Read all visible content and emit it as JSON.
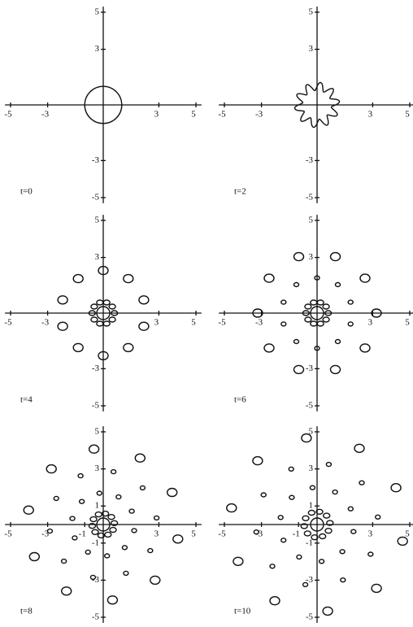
{
  "panels": [
    {
      "label": "t=0",
      "xticks": [
        -5,
        -3,
        3,
        5
      ],
      "yticks": [
        5,
        3,
        -3,
        -5
      ]
    },
    {
      "label": "t=2",
      "xticks": [
        -5,
        -3,
        3,
        5
      ],
      "yticks": [
        5,
        3,
        -3,
        -5
      ]
    },
    {
      "label": "t=4",
      "xticks": [
        -5,
        -3,
        3,
        5
      ],
      "yticks": [
        5,
        3,
        -3,
        -5
      ]
    },
    {
      "label": "t=6",
      "xticks": [
        -5,
        -3,
        3,
        5
      ],
      "yticks": [
        5,
        3,
        -3,
        -5
      ]
    },
    {
      "label": "t=8",
      "xticks": [
        -5,
        -3,
        -1,
        3,
        5
      ],
      "yticks": [
        5,
        3,
        1,
        -1,
        -3,
        -5
      ]
    },
    {
      "label": "t=10",
      "xticks": [
        -5,
        -3,
        -1,
        3,
        5
      ],
      "yticks": [
        5,
        3,
        1,
        -1,
        -3,
        -5
      ]
    }
  ]
}
